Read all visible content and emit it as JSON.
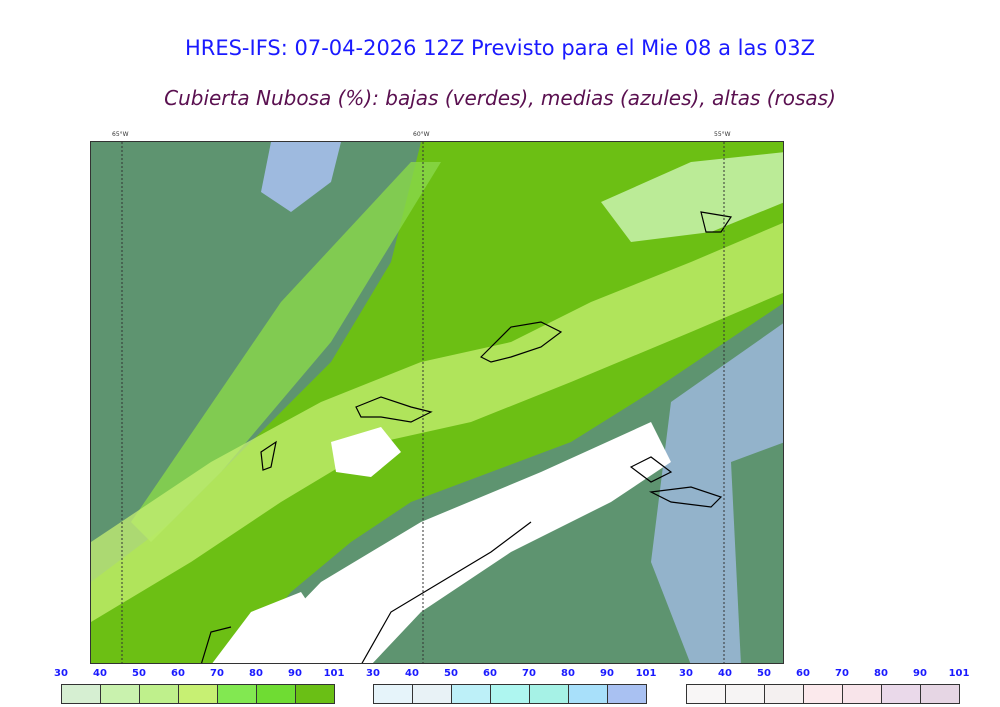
{
  "header": {
    "title": "HRES-IFS: 07-04-2026 12Z Previsto para el Mie 08 a las 03Z",
    "subtitle": "Cubierta Nubosa (%): bajas (verdes), medias (azules), altas (rosas)"
  },
  "map": {
    "longitude_labels": [
      "65°W",
      "60°W",
      "55°W"
    ],
    "colors": {
      "background_low": "#5e9470",
      "bright_green": "#6cbf14",
      "mid_green": "#8ad84a",
      "clear": "#ffffff",
      "blue": "#a9c1f2",
      "coast": "#000000"
    }
  },
  "legends": [
    {
      "name": "bajas",
      "ticks": [
        "30",
        "40",
        "50",
        "60",
        "70",
        "80",
        "90",
        "101"
      ],
      "colors": [
        "#d6efd2",
        "#c9f2ae",
        "#bff08c",
        "#c7f073",
        "#82e851",
        "#6fdc33",
        "#6abf15"
      ]
    },
    {
      "name": "medias",
      "ticks": [
        "30",
        "40",
        "50",
        "60",
        "70",
        "80",
        "90",
        "101"
      ],
      "colors": [
        "#e6f4fa",
        "#e8f2f6",
        "#bdf0f8",
        "#aef6f0",
        "#a6f2e6",
        "#a8e0fa",
        "#a9c1f2"
      ]
    },
    {
      "name": "altas",
      "ticks": [
        "30",
        "40",
        "50",
        "60",
        "70",
        "80",
        "90",
        "101"
      ],
      "colors": [
        "#f8f6f6",
        "#f6f4f4",
        "#f4f0f0",
        "#fbe9ec",
        "#f8e4ea",
        "#ead9ea",
        "#e6d6e4"
      ]
    }
  ]
}
